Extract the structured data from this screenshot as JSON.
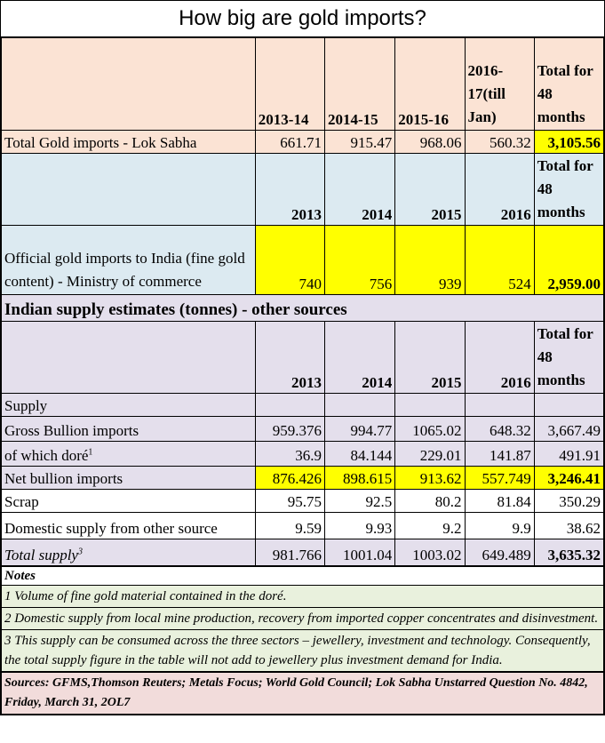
{
  "title": "How big are gold imports?",
  "lok_sabha": {
    "headers": [
      "2013-14",
      "2014-15",
      "2015-16",
      "2016-17(till Jan)",
      "Total for 48 months"
    ],
    "label": "Total Gold imports - Lok Sabha",
    "values": [
      "661.71",
      "915.47",
      "968.06",
      "560.32",
      "3,105.56"
    ]
  },
  "commerce": {
    "headers": [
      "2013",
      "2014",
      "2015",
      "2016",
      "Total for 48 months"
    ],
    "label": "Official gold imports to India (fine gold content) - Ministry of commerce",
    "values": [
      "740",
      "756",
      "939",
      "524",
      "2,959.00"
    ]
  },
  "other": {
    "section_title": "Indian supply estimates (tonnes) - other sources",
    "headers": [
      "2013",
      "2014",
      "2015",
      "2016",
      "Total for 48 months"
    ],
    "supply_label": "Supply",
    "rows": [
      {
        "label": "Gross Bullion imports",
        "sup": "",
        "values": [
          "959.376",
          "994.77",
          "1065.02",
          "648.32",
          "3,667.49"
        ]
      },
      {
        "label": "of which doré",
        "sup": "1",
        "values": [
          "36.9",
          "84.144",
          "229.01",
          "141.87",
          "491.91"
        ]
      },
      {
        "label": "Net bullion imports",
        "sup": "",
        "values": [
          "876.426",
          "898.615",
          "913.62",
          "557.749",
          "3,246.41"
        ]
      },
      {
        "label": "Scrap",
        "sup": "",
        "values": [
          "95.75",
          "92.5",
          "80.2",
          "81.84",
          "350.29"
        ]
      },
      {
        "label": "Domestic supply from other source",
        "sup": "",
        "values": [
          "9.59",
          "9.93",
          "9.2",
          "9.9",
          "38.62"
        ]
      },
      {
        "label": "Total supply",
        "sup": "3",
        "values": [
          "981.766",
          "1001.04",
          "1003.02",
          "649.489",
          "3,635.32"
        ]
      }
    ]
  },
  "notes": {
    "heading": "Notes",
    "items": [
      "1 Volume of fine gold material contained in the doré.",
      "2 Domestic supply from local mine production, recovery from imported copper concentrates and disinvestment.",
      "3 This supply can be consumed across the three sectors – jewellery, investment and technology. Consequently, the total supply figure in the table will not add to jewellery plus investment demand for India."
    ]
  },
  "sources": "Sources:  GFMS,Thomson Reuters; Metals Focus; World Gold Council; Lok Sabha Unstarred Question No.  4842, Friday, March 31, 2OL7",
  "colors": {
    "peach": "#fbe3d4",
    "blue": "#dceaf1",
    "lavender": "#e4dfec",
    "highlight": "#ffff00",
    "notes": "#e9f1dd",
    "sources": "#f2dcdb"
  }
}
